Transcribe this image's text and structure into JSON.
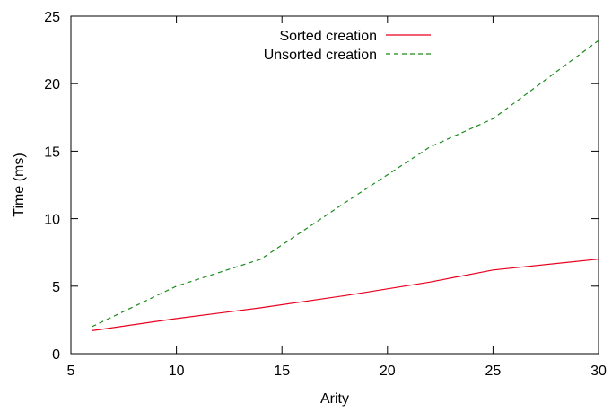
{
  "chart_data": {
    "type": "line",
    "xlabel": "Arity",
    "ylabel": "Time (ms)",
    "xlim": [
      5,
      30
    ],
    "ylim": [
      0,
      25
    ],
    "xticks": [
      5,
      10,
      15,
      20,
      25,
      30
    ],
    "yticks": [
      0,
      5,
      10,
      15,
      20,
      25
    ],
    "legend_position": "top-center",
    "grid": false,
    "series": [
      {
        "name": "Sorted creation",
        "color": "#e8001e",
        "dash": "solid",
        "x": [
          6,
          10,
          14,
          18,
          22,
          25,
          30
        ],
        "y": [
          1.7,
          2.6,
          3.4,
          4.3,
          5.3,
          6.2,
          7.0
        ]
      },
      {
        "name": "Unsorted creation",
        "color": "#1a8a1a",
        "dash": "dashed",
        "x": [
          6,
          10,
          14,
          18,
          22,
          25,
          30
        ],
        "y": [
          2.0,
          5.0,
          7.0,
          11.2,
          15.3,
          17.4,
          23.2
        ]
      }
    ]
  }
}
